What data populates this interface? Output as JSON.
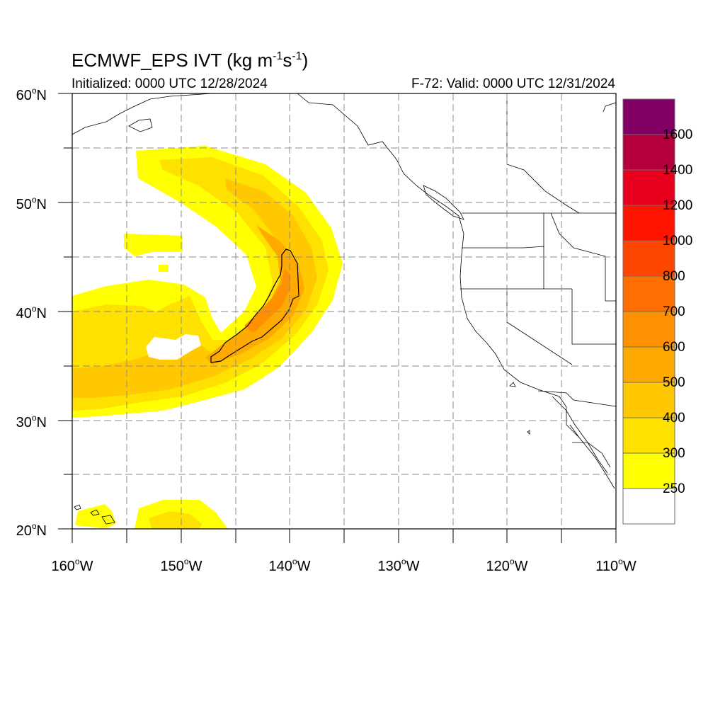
{
  "header": {
    "title_main": "ECMWF_EPS IVT (kg m",
    "title_exp1": "-1",
    "title_mid": "s",
    "title_exp2": "-1",
    "title_end": ")",
    "initialized": "Initialized: 0000 UTC 12/28/2024",
    "valid": "F-72: Valid: 0000 UTC 12/31/2024"
  },
  "axes": {
    "lat_labels": [
      {
        "num": "60",
        "hemi": "N"
      },
      {
        "num": "50",
        "hemi": "N"
      },
      {
        "num": "40",
        "hemi": "N"
      },
      {
        "num": "30",
        "hemi": "N"
      },
      {
        "num": "20",
        "hemi": "N"
      }
    ],
    "lon_labels": [
      {
        "num": "160",
        "hemi": "W"
      },
      {
        "num": "150",
        "hemi": "W"
      },
      {
        "num": "140",
        "hemi": "W"
      },
      {
        "num": "130",
        "hemi": "W"
      },
      {
        "num": "120",
        "hemi": "W"
      },
      {
        "num": "110",
        "hemi": "W"
      }
    ],
    "deg_symbol": "o",
    "lat_range": [
      20,
      60
    ],
    "lon_range": [
      -160,
      -110
    ],
    "grid": "dashed every 5 degrees"
  },
  "colorbar": {
    "levels": [
      "250",
      "300",
      "400",
      "500",
      "600",
      "700",
      "800",
      "1000",
      "1200",
      "1400",
      "1600"
    ],
    "colors": [
      "#ffffff",
      "#ffff00",
      "#ffe100",
      "#ffc800",
      "#ffaa00",
      "#ff9100",
      "#ff6e00",
      "#ff4600",
      "#ff1400",
      "#e6001e",
      "#b4003c",
      "#820064",
      "#5a0096"
    ]
  },
  "colors": {
    "ivt_250": "#ffff00",
    "ivt_300": "#ffe100",
    "ivt_400": "#ffc800",
    "ivt_500": "#ffaa00",
    "ivt_600": "#ff9100"
  }
}
